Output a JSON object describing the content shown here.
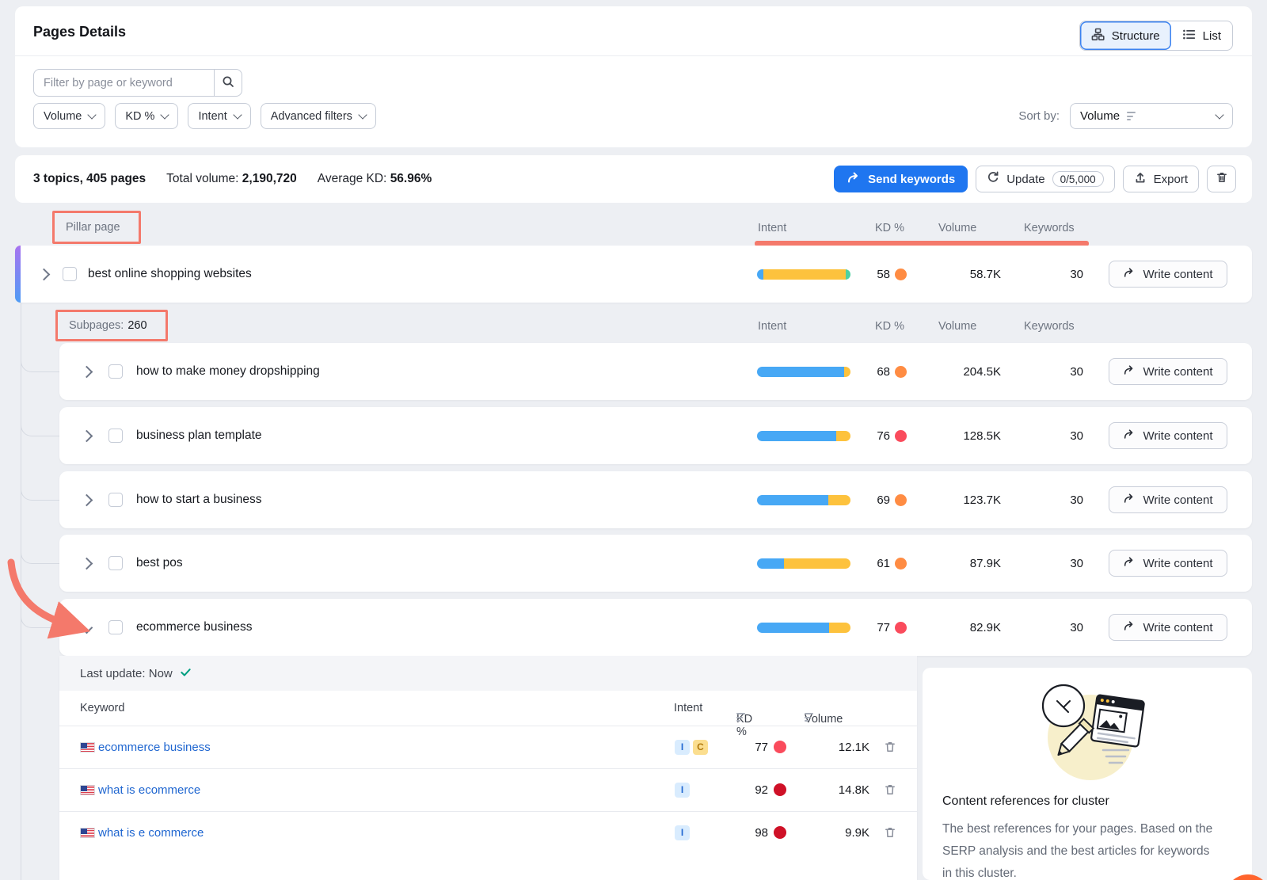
{
  "header": {
    "title": "Pages Details",
    "structure_label": "Structure",
    "list_label": "List",
    "search_placeholder": "Filter by page or keyword",
    "filter_volume": "Volume",
    "filter_kd": "KD %",
    "filter_intent": "Intent",
    "filter_advanced": "Advanced filters",
    "sort_by_label": "Sort by:",
    "sort_by_value": "Volume"
  },
  "summary": {
    "topics_pages": "3 topics, 405 pages",
    "total_volume_label": "Total volume:",
    "total_volume_value": "2,190,720",
    "average_kd_label": "Average KD:",
    "average_kd_value": "56.96%",
    "send_keywords_label": "Send keywords",
    "update_label": "Update",
    "update_quota": "0/5,000",
    "export_label": "Export"
  },
  "table": {
    "pillar_header": "Pillar page",
    "col_intent": "Intent",
    "col_kd": "KD %",
    "col_volume": "Volume",
    "col_keywords": "Keywords",
    "subpages_label": "Subpages:",
    "subpages_count": "260",
    "write_content_label": "Write content",
    "pillar_row": {
      "title": "best online shopping websites",
      "kd": "58",
      "kd_color": "#ff8c43",
      "volume": "58.7K",
      "keywords": "30",
      "intent_segments": [
        {
          "color": "#47a8f5",
          "pct": 7
        },
        {
          "color": "#fdc23d",
          "pct": 88
        },
        {
          "color": "#4fd1a1",
          "pct": 5
        }
      ]
    },
    "rows": [
      {
        "title": "how to make money dropshipping",
        "kd": "68",
        "kd_color": "#ff8c43",
        "volume": "204.5K",
        "keywords": "30",
        "intent_segments": [
          {
            "color": "#47a8f5",
            "pct": 93
          },
          {
            "color": "#fdc23d",
            "pct": 7
          }
        ]
      },
      {
        "title": "business plan template",
        "kd": "76",
        "kd_color": "#fa4b5c",
        "volume": "128.5K",
        "keywords": "30",
        "intent_segments": [
          {
            "color": "#47a8f5",
            "pct": 85
          },
          {
            "color": "#fdc23d",
            "pct": 15
          }
        ]
      },
      {
        "title": "how to start a business",
        "kd": "69",
        "kd_color": "#ff8c43",
        "volume": "123.7K",
        "keywords": "30",
        "intent_segments": [
          {
            "color": "#47a8f5",
            "pct": 76
          },
          {
            "color": "#fdc23d",
            "pct": 24
          }
        ]
      },
      {
        "title": "best pos",
        "kd": "61",
        "kd_color": "#ff8c43",
        "volume": "87.9K",
        "keywords": "30",
        "intent_segments": [
          {
            "color": "#47a8f5",
            "pct": 29
          },
          {
            "color": "#fdc23d",
            "pct": 71
          }
        ]
      },
      {
        "title": "ecommerce business",
        "kd": "77",
        "kd_color": "#fa4b5c",
        "volume": "82.9K",
        "keywords": "30",
        "intent_segments": [
          {
            "color": "#47a8f5",
            "pct": 77
          },
          {
            "color": "#fdc23d",
            "pct": 23
          }
        ]
      }
    ]
  },
  "expanded": {
    "last_update_label": "Last update: Now",
    "col_keyword": "Keyword",
    "col_intent": "Intent",
    "col_kd": "KD %",
    "col_volume": "Volume",
    "keywords": [
      {
        "keyword": "ecommerce business",
        "intent_1": "I",
        "intent_2": "C",
        "kd": "77",
        "kd_color": "#fa4b5c",
        "volume": "12.1K"
      },
      {
        "keyword": "what is ecommerce",
        "intent_1": "I",
        "kd": "92",
        "kd_color": "#cf1127",
        "volume": "14.8K"
      },
      {
        "keyword": "what is e commerce",
        "intent_1": "I",
        "kd": "98",
        "kd_color": "#cf1127",
        "volume": "9.9K"
      }
    ]
  },
  "reference_panel": {
    "title": "Content references for cluster",
    "description": "The best references for your pages. Based on the SERP analysis and the best articles for keywords in this cluster."
  }
}
